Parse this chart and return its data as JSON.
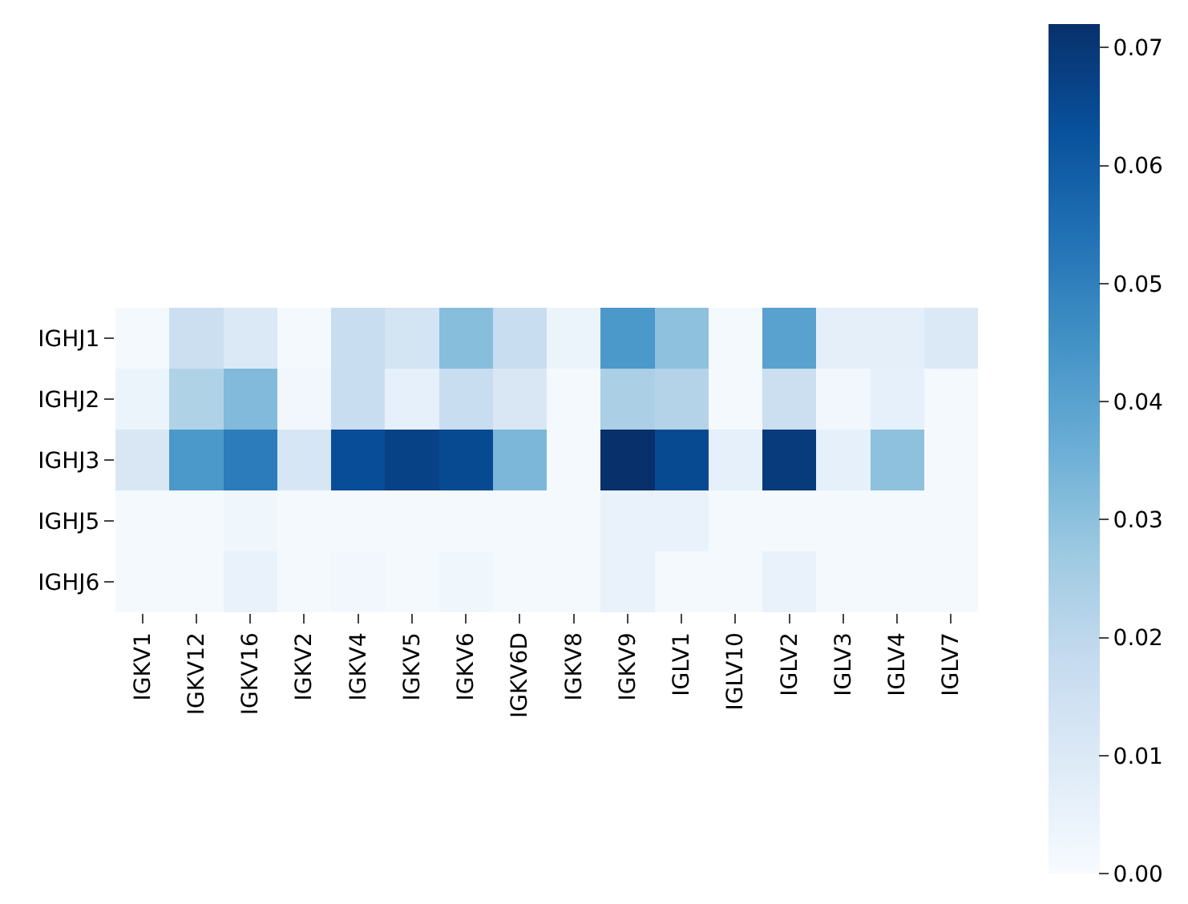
{
  "chart_data": {
    "type": "heatmap",
    "categories": [
      "IGKV1",
      "IGKV12",
      "IGKV16",
      "IGKV2",
      "IGKV4",
      "IGKV5",
      "IGKV6",
      "IGKV6D",
      "IGKV8",
      "IGKV9",
      "IGLV1",
      "IGLV10",
      "IGLV2",
      "IGLV3",
      "IGLV4",
      "IGLV7"
    ],
    "y_categories": [
      "IGHJ1",
      "IGHJ2",
      "IGHJ3",
      "IGHJ5",
      "IGHJ6"
    ],
    "cells": [
      [
        0.001,
        0.016,
        0.01,
        0.001,
        0.017,
        0.013,
        0.031,
        0.017,
        0.004,
        0.043,
        0.03,
        0.001,
        0.04,
        0.007,
        0.007,
        0.01
      ],
      [
        0.004,
        0.023,
        0.032,
        0.002,
        0.017,
        0.006,
        0.017,
        0.011,
        0.001,
        0.024,
        0.022,
        0.001,
        0.016,
        0.002,
        0.006,
        0.001
      ],
      [
        0.011,
        0.043,
        0.051,
        0.012,
        0.064,
        0.067,
        0.065,
        0.033,
        0.001,
        0.072,
        0.065,
        0.006,
        0.069,
        0.006,
        0.03,
        0.001
      ],
      [
        0.001,
        0.001,
        0.003,
        0.001,
        0.001,
        0.001,
        0.001,
        0.001,
        0.001,
        0.005,
        0.005,
        0.001,
        0.001,
        0.001,
        0.001,
        0.001
      ],
      [
        0.001,
        0.001,
        0.005,
        0.001,
        0.002,
        0.001,
        0.003,
        0.001,
        0.001,
        0.005,
        0.001,
        0.001,
        0.005,
        0.001,
        0.001,
        0.001
      ]
    ],
    "clim": [
      0,
      0.072
    ],
    "cticks": [
      {
        "value": 0,
        "label": "0.00"
      },
      {
        "value": 0.01,
        "label": "0.01"
      },
      {
        "value": 0.02,
        "label": "0.02"
      },
      {
        "value": 0.03,
        "label": "0.03"
      },
      {
        "value": 0.04,
        "label": "0.04"
      },
      {
        "value": 0.05,
        "label": "0.05"
      },
      {
        "value": 0.06,
        "label": "0.06"
      },
      {
        "value": 0.07,
        "label": "0.07"
      }
    ]
  }
}
